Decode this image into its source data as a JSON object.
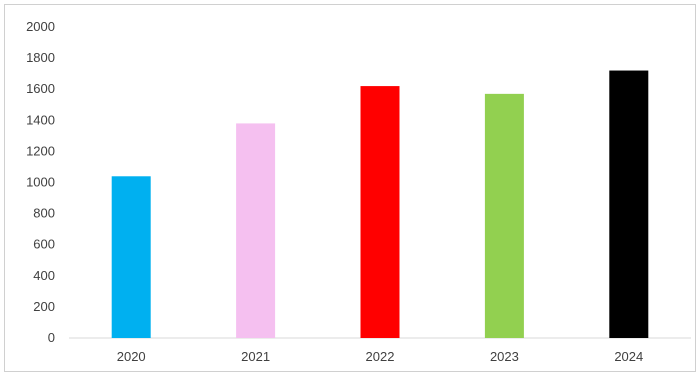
{
  "chart_data": {
    "type": "bar",
    "categories": [
      "2020",
      "2021",
      "2022",
      "2023",
      "2024"
    ],
    "values": [
      1040,
      1380,
      1620,
      1570,
      1720
    ],
    "colors": [
      "#00b0f0",
      "#f5c0f0",
      "#ff0000",
      "#92d050",
      "#000000"
    ],
    "ylim": [
      0,
      2000
    ],
    "yticks": [
      "0",
      "200",
      "400",
      "600",
      "800",
      "1000",
      "1200",
      "1400",
      "1600",
      "1800",
      "2000"
    ],
    "grid": false,
    "legend": "none"
  }
}
